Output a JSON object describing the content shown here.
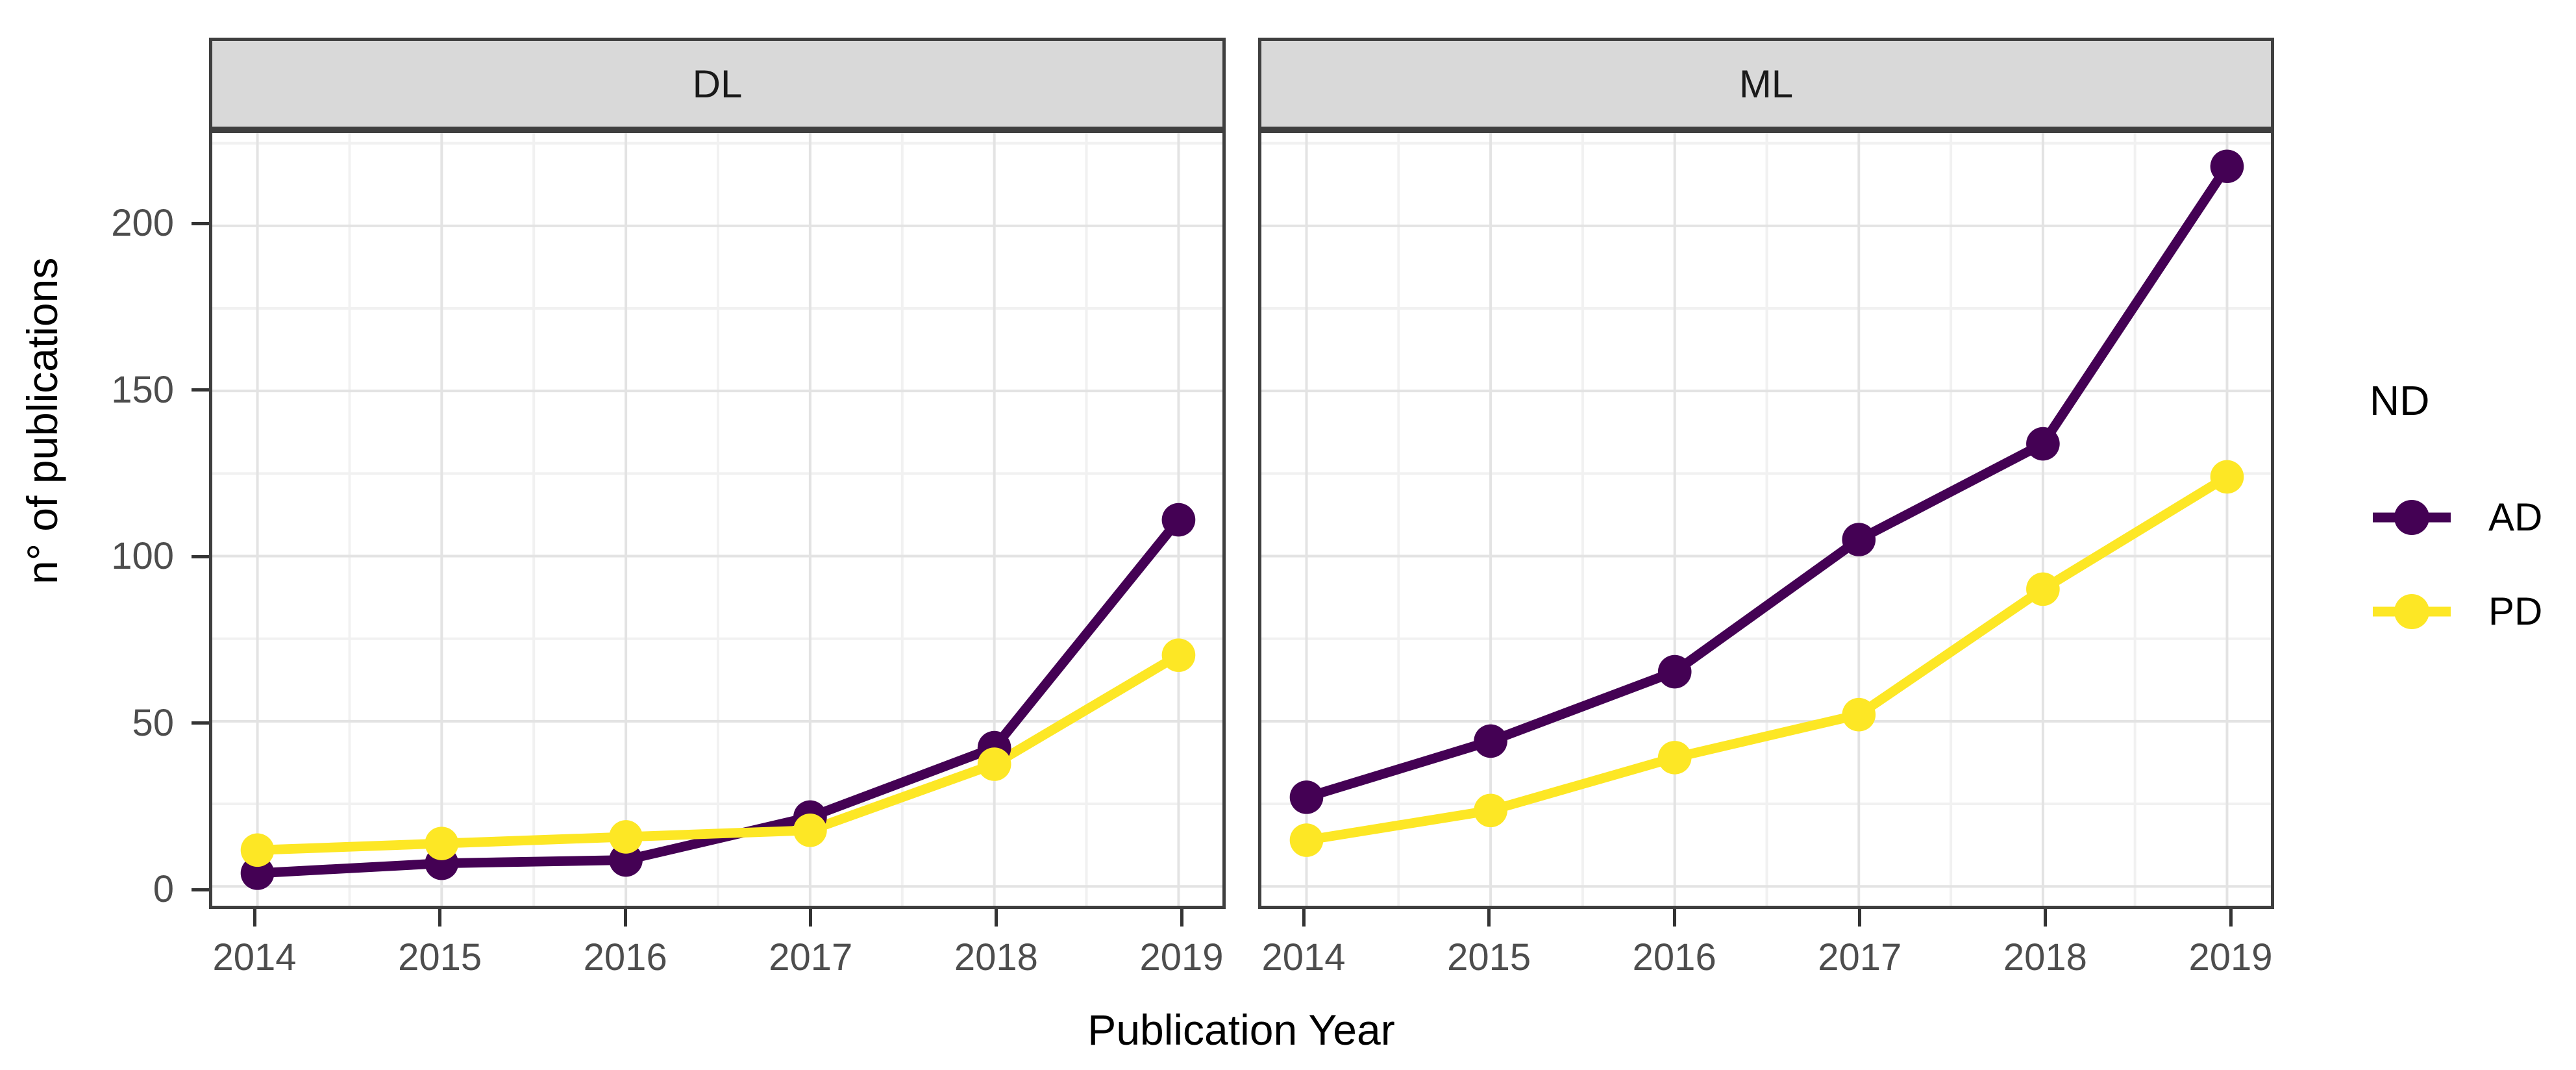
{
  "figure": {
    "kind": "faceted line chart"
  },
  "axes": {
    "y_title": "n° of publications",
    "x_title": "Publication Year",
    "y_ticks": [
      0,
      50,
      100,
      150,
      200
    ],
    "y_minor": [
      25,
      75,
      125,
      175,
      225
    ],
    "x_tick_labels": [
      "2014",
      "2015",
      "2016",
      "2017",
      "2018",
      "2019"
    ],
    "grid": "on",
    "y_range": [
      0,
      228
    ]
  },
  "facets": [
    {
      "label": "DL"
    },
    {
      "label": "ML"
    }
  ],
  "legend": {
    "title": "ND",
    "position": "right",
    "entries": [
      {
        "label": "AD",
        "color": "#440154"
      },
      {
        "label": "PD",
        "color": "#FDE725"
      }
    ]
  },
  "chart_data": [
    {
      "type": "line",
      "facet": "DL",
      "x": [
        2014,
        2015,
        2016,
        2017,
        2018,
        2019
      ],
      "series": [
        {
          "name": "AD",
          "color": "#440154",
          "values": [
            4,
            7,
            8,
            21,
            42,
            111
          ]
        },
        {
          "name": "PD",
          "color": "#FDE725",
          "values": [
            11,
            13,
            15,
            17,
            37,
            70
          ]
        }
      ],
      "title": "DL",
      "xlabel": "Publication Year",
      "ylabel": "n° of publications",
      "ylim": [
        0,
        228
      ]
    },
    {
      "type": "line",
      "facet": "ML",
      "x": [
        2014,
        2015,
        2016,
        2017,
        2018,
        2019
      ],
      "series": [
        {
          "name": "AD",
          "color": "#440154",
          "values": [
            27,
            44,
            65,
            105,
            134,
            218
          ]
        },
        {
          "name": "PD",
          "color": "#FDE725",
          "values": [
            14,
            23,
            39,
            52,
            90,
            124
          ]
        }
      ],
      "title": "ML",
      "xlabel": "Publication Year",
      "ylabel": "n° of publications",
      "ylim": [
        0,
        228
      ]
    }
  ],
  "style": {
    "strip_fill": "#D9D9D9",
    "panel_border": "#3F3F3F",
    "grid_major": "#E3E3E3",
    "grid_minor": "#F1F1F1",
    "tick_color": "#333333",
    "tick_label_color": "#4D4D4D"
  }
}
